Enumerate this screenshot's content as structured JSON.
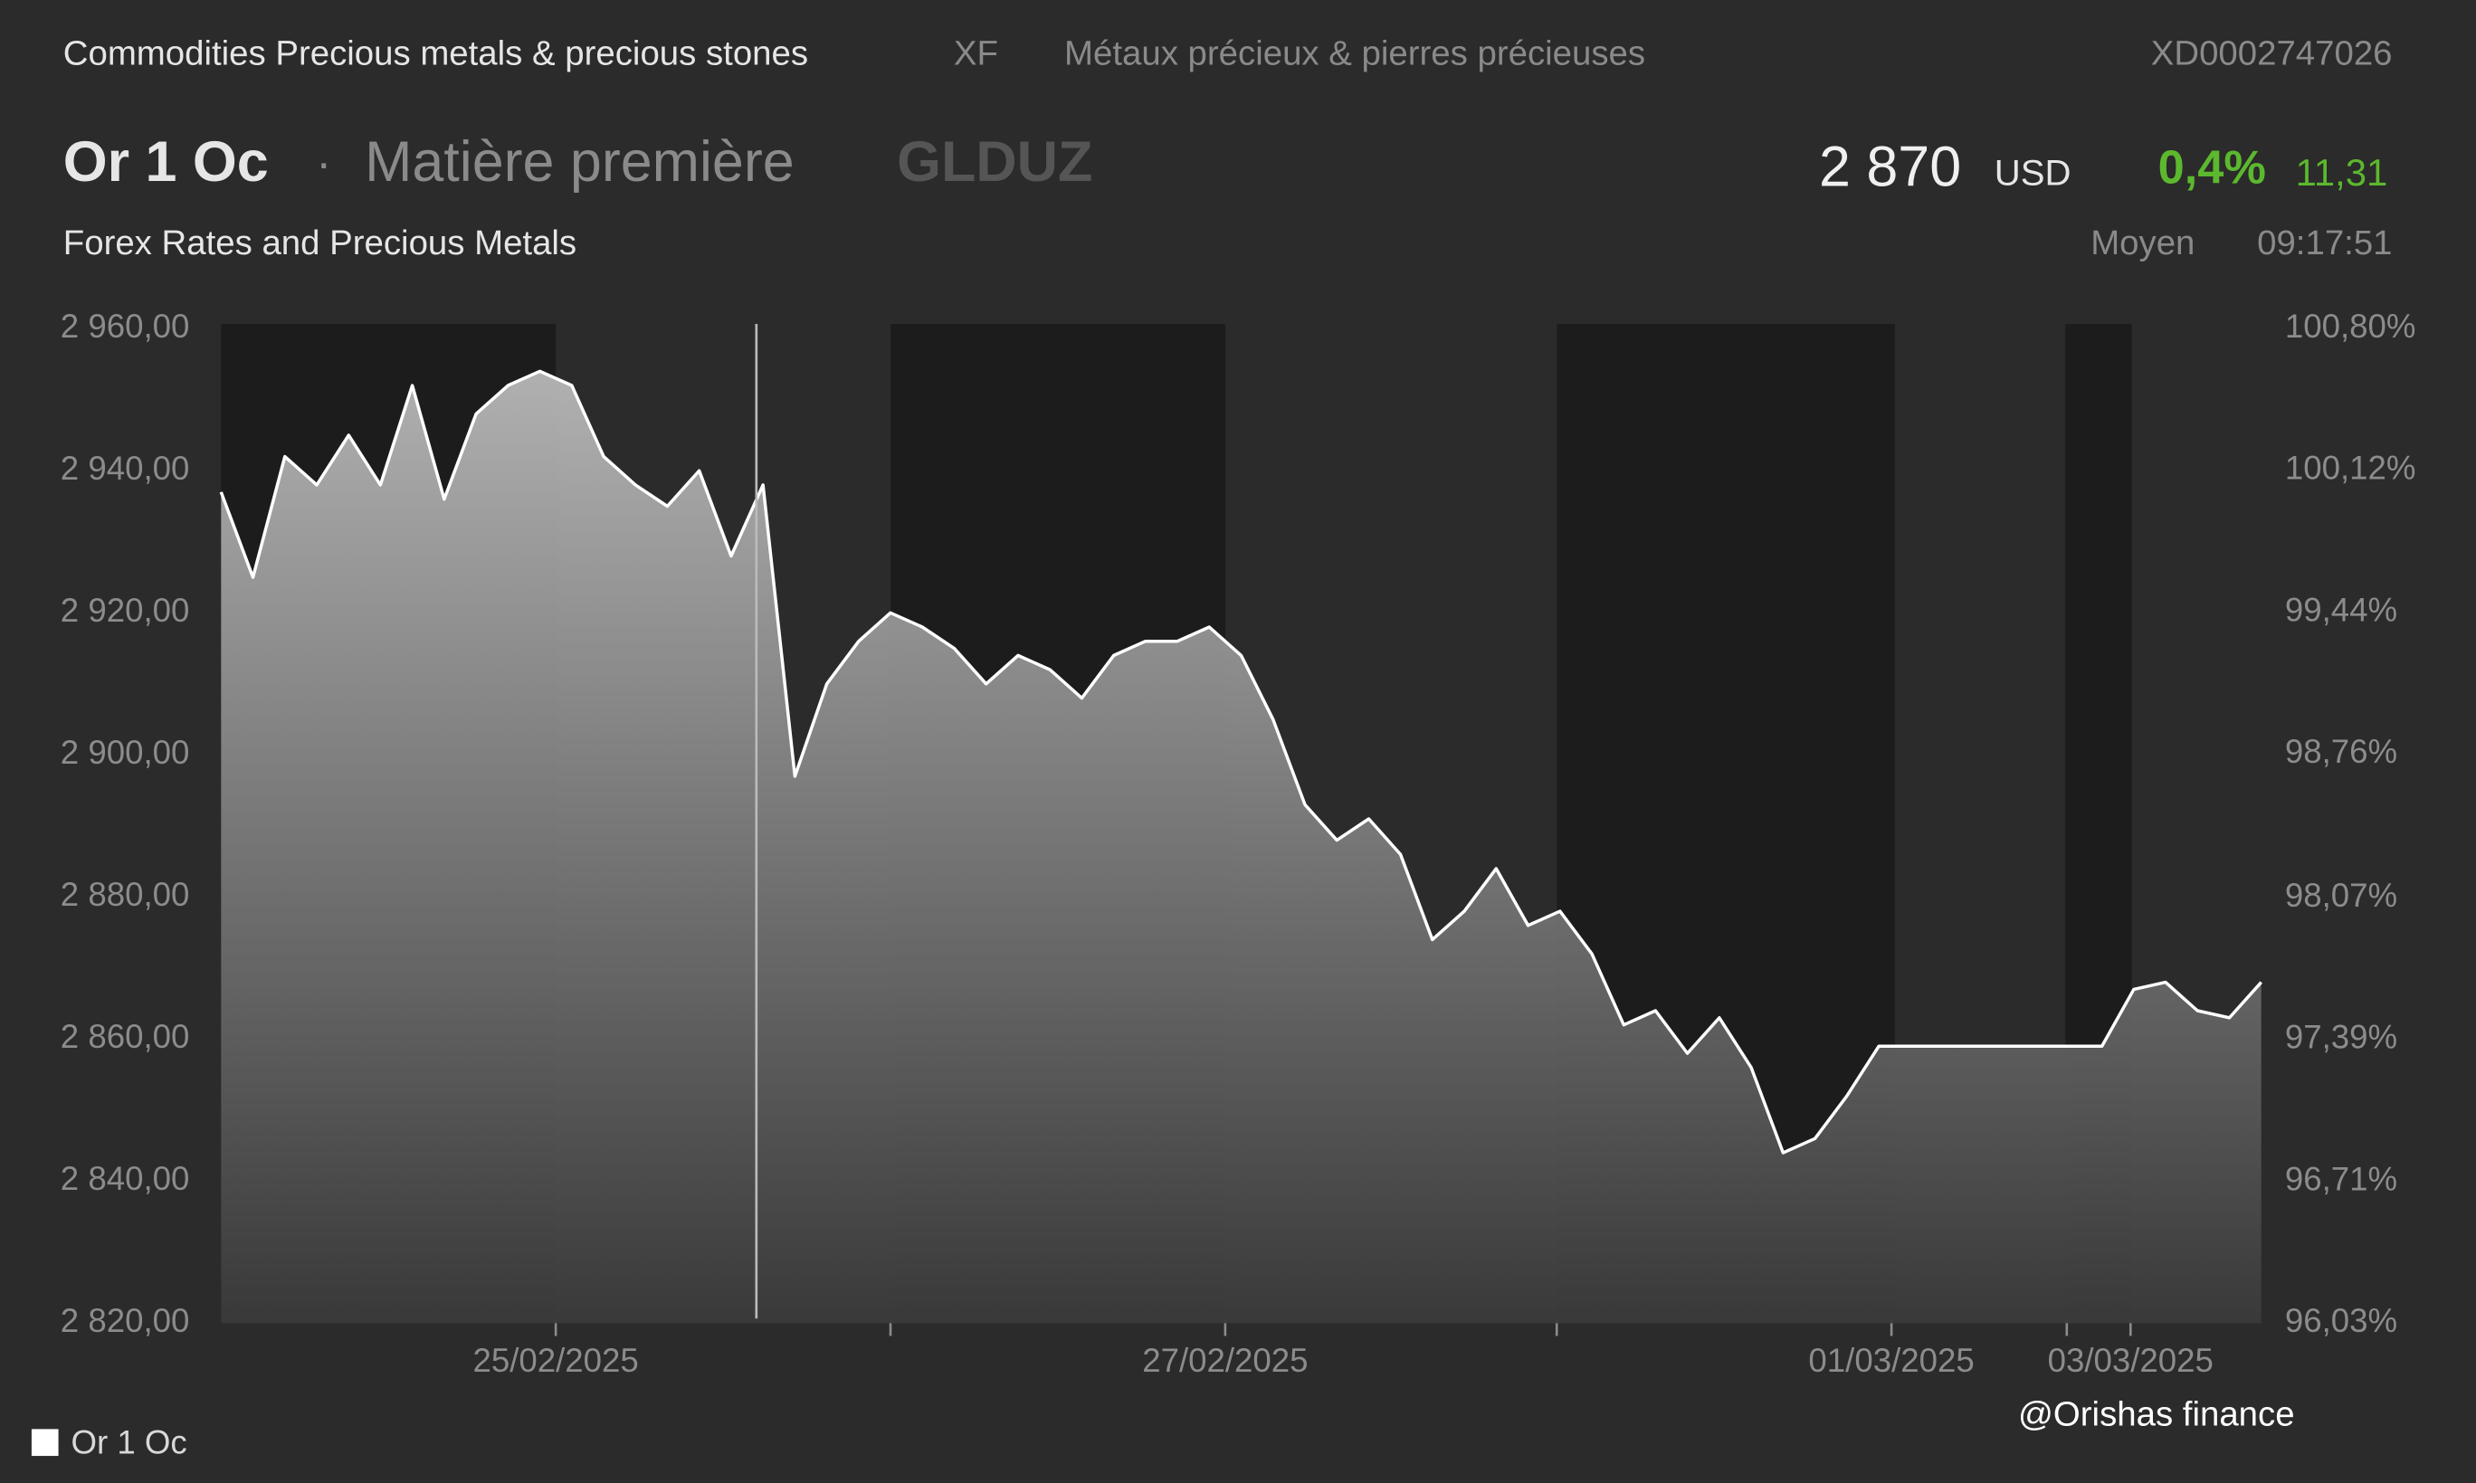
{
  "header": {
    "breadcrumb": "Commodities Precious metals & precious stones",
    "code": "XF",
    "breadcrumb_fr": "Métaux précieux & pierres précieuses",
    "isin": "XD0002747026",
    "name": "Or 1 Oc",
    "separator": "·",
    "kind": "Matière première",
    "ticker": "GLDUZ",
    "price": "2 870",
    "currency": "USD",
    "change_pct": "0,4%",
    "change": "11,31",
    "source": "Forex Rates and Precious Metals",
    "quote_type": "Moyen",
    "time": "09:17:51"
  },
  "watermark": "@Orishas finance",
  "chart_data": {
    "type": "area",
    "series": [
      {
        "name": "Or 1 Oc",
        "color": "#ffffff",
        "values": [
          2937,
          2925,
          2942,
          2938,
          2945,
          2938,
          2952,
          2936,
          2948,
          2952,
          2954,
          2952,
          2942,
          2938,
          2935,
          2940,
          2928,
          2938,
          2897,
          2910,
          2916,
          2920,
          2918,
          2915,
          2910,
          2914,
          2912,
          2908,
          2914,
          2916,
          2916,
          2918,
          2914,
          2905,
          2893,
          2888,
          2891,
          2886,
          2874,
          2878,
          2884,
          2876,
          2878,
          2872,
          2862,
          2864,
          2858,
          2863,
          2856,
          2844,
          2846,
          2852,
          2859,
          2859,
          2859,
          2859,
          2859,
          2859,
          2859,
          2859,
          2867,
          2868,
          2864,
          2863,
          2868
        ]
      }
    ],
    "xlim": [
      0,
      64
    ],
    "xticks": [
      {
        "value": 10.5,
        "label": "25/02/2025"
      },
      {
        "value": 31.5,
        "label": "27/02/2025"
      },
      {
        "value": 52.4,
        "label": "01/03/2025"
      },
      {
        "value": 59.9,
        "label": "03/03/2025"
      }
    ],
    "xminor": [
      21,
      41.9,
      57.9
    ],
    "ylim": [
      2820,
      2960
    ],
    "yticks": [
      {
        "value": 2820,
        "label": "2 820,00"
      },
      {
        "value": 2840,
        "label": "2 840,00"
      },
      {
        "value": 2860,
        "label": "2 860,00"
      },
      {
        "value": 2880,
        "label": "2 880,00"
      },
      {
        "value": 2900,
        "label": "2 900,00"
      },
      {
        "value": 2920,
        "label": "2 920,00"
      },
      {
        "value": 2940,
        "label": "2 940,00"
      },
      {
        "value": 2960,
        "label": "2 960,00"
      }
    ],
    "y2lim": [
      96.03,
      100.8
    ],
    "y2ticks": [
      {
        "value": 96.03,
        "label": "96,03%"
      },
      {
        "value": 96.71,
        "label": "96,71%"
      },
      {
        "value": 97.39,
        "label": "97,39%"
      },
      {
        "value": 98.07,
        "label": "98,07%"
      },
      {
        "value": 98.76,
        "label": "98,76%"
      },
      {
        "value": 99.44,
        "label": "99,44%"
      },
      {
        "value": 100.12,
        "label": "100,12%"
      },
      {
        "value": 100.8,
        "label": "100,80%"
      }
    ]
  }
}
